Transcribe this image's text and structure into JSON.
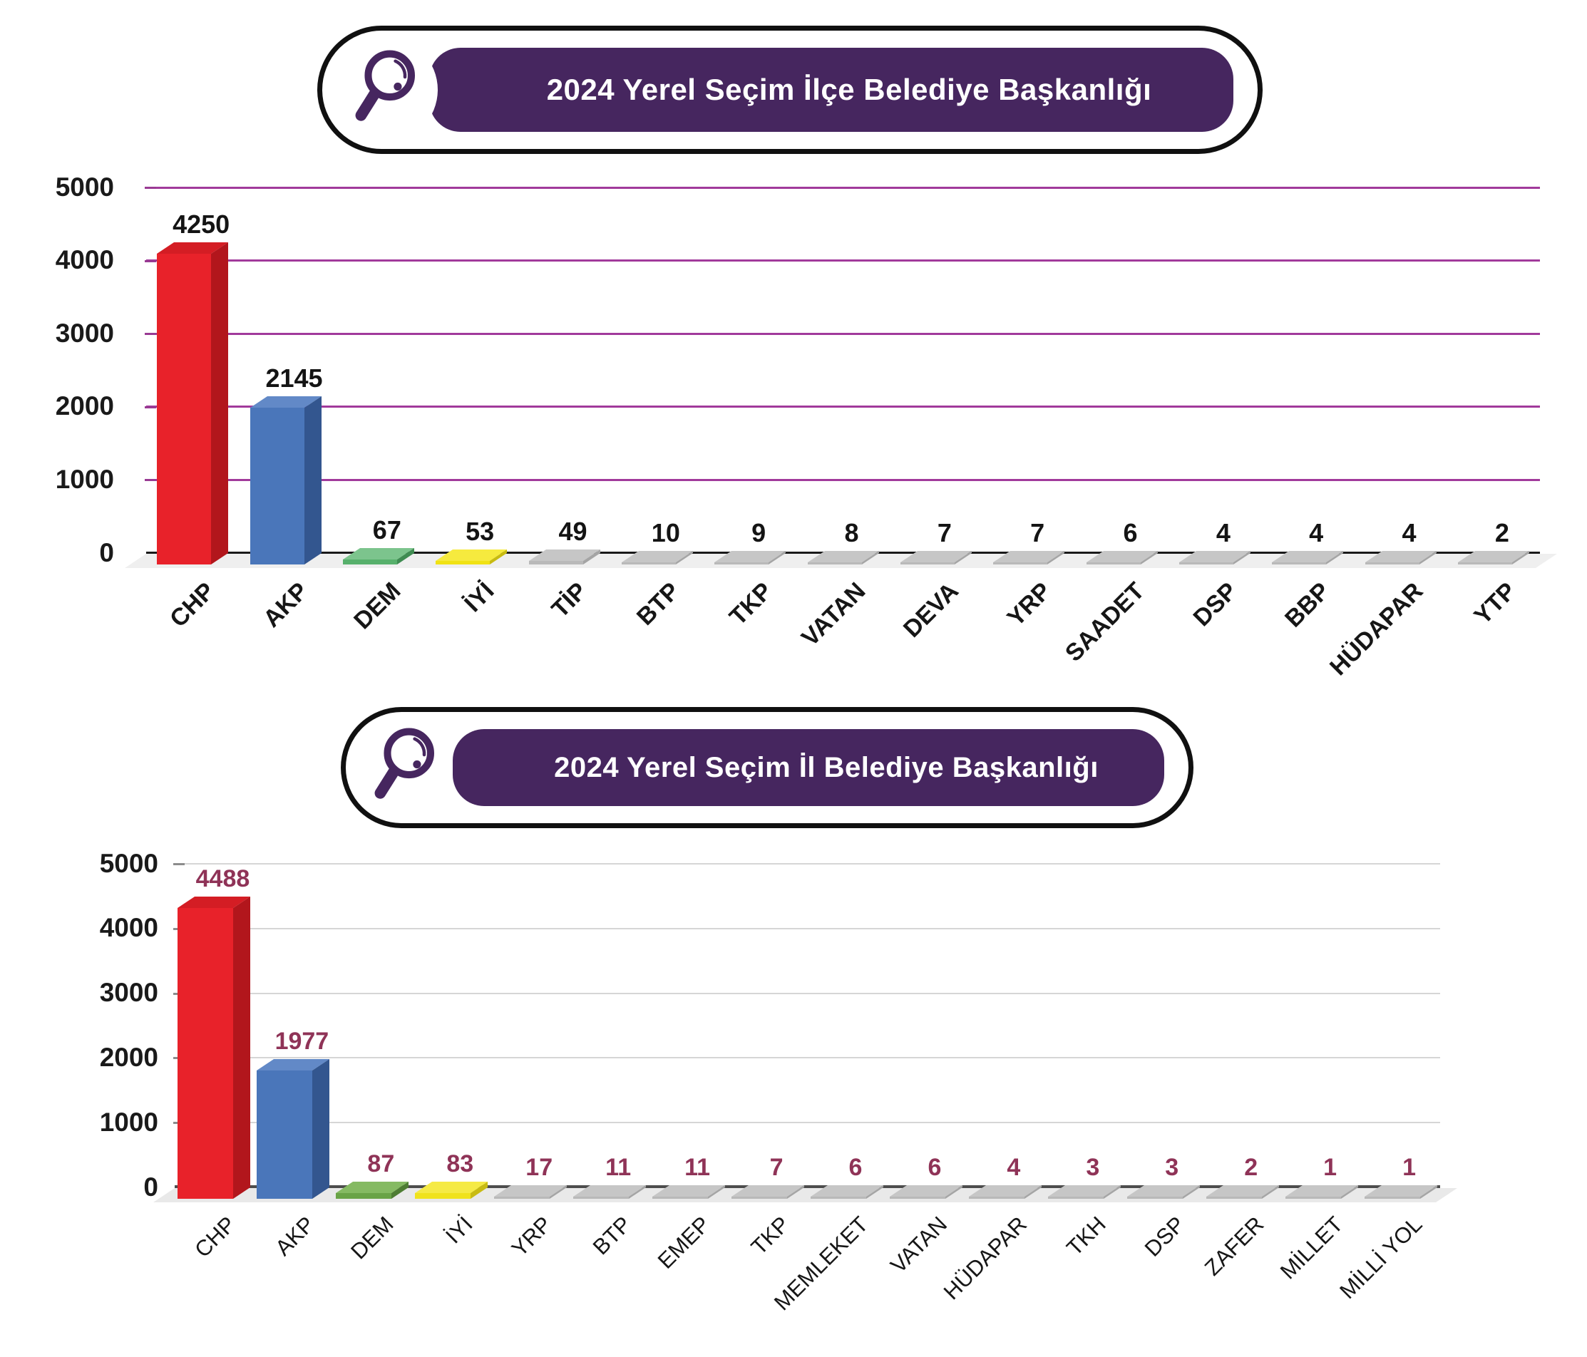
{
  "theme": {
    "background": "#ffffff",
    "badge_border_color": "#101010",
    "badge_pill_bg": "#ffffff",
    "badge_bar_color": "#46265f",
    "badge_text_color": "#ffffff",
    "magnifier_icon_color": "#4b2a72"
  },
  "palette": {
    "red": {
      "front": "#e8222a",
      "top": "#d41d24",
      "side": "#b2161c"
    },
    "blue": {
      "front": "#4a76ba",
      "top": "#6289c7",
      "side": "#33568f"
    },
    "green": {
      "front": "#57b06c",
      "top": "#7cc48d",
      "side": "#3f8c52"
    },
    "yellow": {
      "front": "#f0e214",
      "top": "#f6ea3e",
      "side": "#c8bb10"
    },
    "green2": {
      "front": "#69a346",
      "top": "#85ba62",
      "side": "#4e7d33"
    },
    "yellow2": {
      "front": "#f0e21c",
      "top": "#f5ea45",
      "side": "#c8bb13"
    },
    "gray": {
      "front": "#b9b9b9",
      "top": "#c6c6c6",
      "side": "#a5a5a5"
    }
  },
  "chart_data": [
    {
      "type": "bar",
      "title": "2024 Yerel Seçim İlçe Belediye Başkanlığı",
      "icon": "magnifier-icon",
      "categories": [
        "CHP",
        "AKP",
        "DEM",
        "İYİ",
        "TİP",
        "BTP",
        "TKP",
        "VATAN",
        "DEVA",
        "YRP",
        "SAADET",
        "DSP",
        "BBP",
        "HÜDAPAR",
        "YTP"
      ],
      "values": [
        4250,
        2145,
        67,
        53,
        49,
        10,
        9,
        8,
        7,
        7,
        6,
        4,
        4,
        4,
        2
      ],
      "bar_colors": [
        "red",
        "blue",
        "green",
        "yellow",
        "gray",
        "gray",
        "gray",
        "gray",
        "gray",
        "gray",
        "gray",
        "gray",
        "gray",
        "gray",
        "gray"
      ],
      "xlabel": "",
      "ylabel": "",
      "ylim": [
        0,
        5000
      ],
      "y_ticks": [
        0,
        1000,
        2000,
        3000,
        4000,
        5000
      ],
      "grid": "on",
      "grid_color": "#a13a9b",
      "axis_line_color": "#1a1a1a",
      "tick_label_color": "#1a1a1a",
      "value_label_color": "#141414",
      "legend_position": "none"
    },
    {
      "type": "bar",
      "title": "2024 Yerel Seçim İl Belediye Başkanlığı",
      "icon": "magnifier-icon",
      "categories": [
        "CHP",
        "AKP",
        "DEM",
        "İYİ",
        "YRP",
        "BTP",
        "EMEP",
        "TKP",
        "MEMLEKET",
        "VATAN",
        "HÜDAPAR",
        "TKH",
        "DSP",
        "ZAFER",
        "MİLLET",
        "MİLLİ YOL"
      ],
      "values": [
        4488,
        1977,
        87,
        83,
        17,
        11,
        11,
        7,
        6,
        6,
        4,
        3,
        3,
        2,
        1,
        1
      ],
      "bar_colors": [
        "red",
        "blue",
        "green2",
        "yellow2",
        "gray",
        "gray",
        "gray",
        "gray",
        "gray",
        "gray",
        "gray",
        "gray",
        "gray",
        "gray",
        "gray",
        "gray"
      ],
      "xlabel": "",
      "ylabel": "",
      "ylim": [
        0,
        5000
      ],
      "y_ticks": [
        0,
        1000,
        2000,
        3000,
        4000,
        5000
      ],
      "grid": "on",
      "grid_color": "#d6d6d6",
      "axis_line_color": "#4d4d4d",
      "tick_label_color": "#1a1a1a",
      "value_label_color": "#8f3357",
      "legend_position": "none"
    }
  ]
}
